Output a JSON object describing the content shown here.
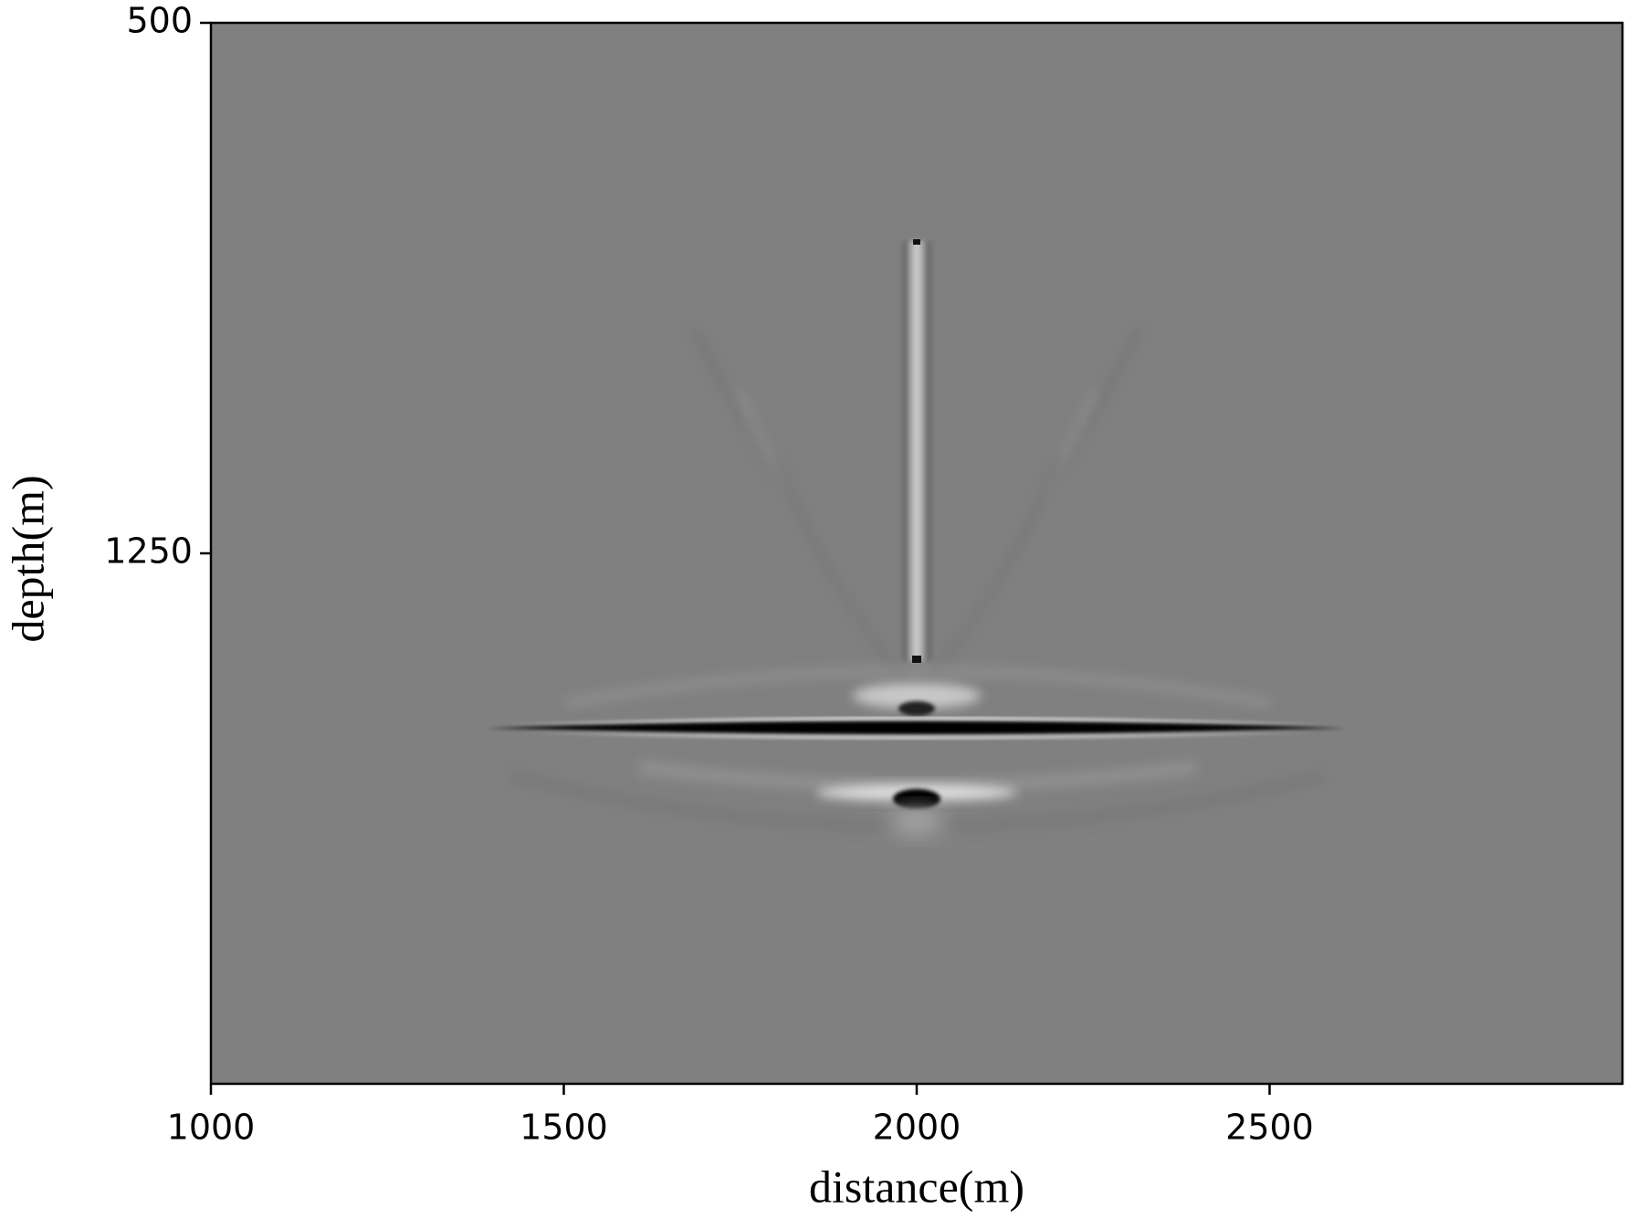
{
  "chart_data": {
    "type": "image",
    "xlabel": "distance(m)",
    "ylabel": "depth(m)",
    "xlim": [
      1000,
      3000
    ],
    "xticks": [
      1000,
      1500,
      2000,
      2500
    ],
    "ylim": [
      2000,
      500
    ],
    "yticks": [
      500,
      1250
    ]
  }
}
